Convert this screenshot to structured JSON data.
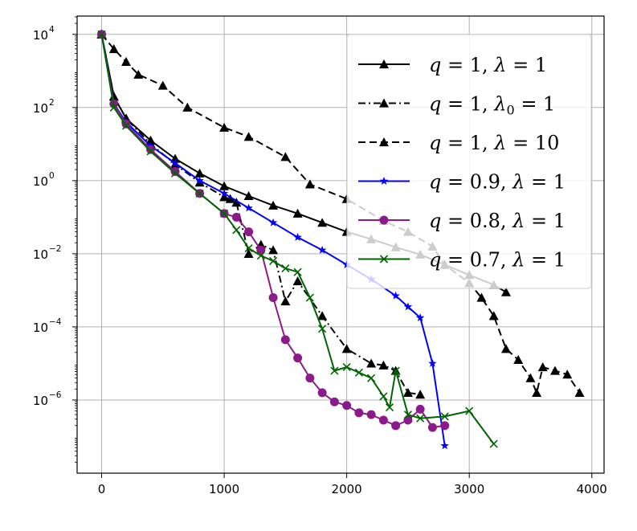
{
  "chart_data": {
    "type": "line",
    "title": "",
    "xlabel": "",
    "ylabel": "",
    "yscale": "log",
    "xlim": [
      -200,
      4100
    ],
    "ylim_log10": [
      -8.0,
      4.5
    ],
    "xticks": [
      {
        "value": 0,
        "label": "0"
      },
      {
        "value": 1000,
        "label": "1000"
      },
      {
        "value": 2000,
        "label": "2000"
      },
      {
        "value": 3000,
        "label": "3000"
      },
      {
        "value": 4000,
        "label": "4000"
      }
    ],
    "yticks": [
      {
        "log10": 4,
        "base": "10",
        "exp": "4"
      },
      {
        "log10": 2,
        "base": "10",
        "exp": "2"
      },
      {
        "log10": 0,
        "base": "10",
        "exp": "0"
      },
      {
        "log10": -2,
        "base": "10",
        "exp": "−2"
      },
      {
        "log10": -4,
        "base": "10",
        "exp": "−4"
      },
      {
        "log10": -6,
        "base": "10",
        "exp": "−6"
      }
    ],
    "grid": true,
    "legend_position": "top-right",
    "series": [
      {
        "label_parts": [
          "q",
          " = 1, ",
          "λ",
          " = 1"
        ],
        "color": "#000000",
        "linestyle": "solid",
        "marker": "triangle",
        "x": [
          0,
          100,
          200,
          400,
          600,
          800,
          1000,
          1200,
          1400,
          1600,
          1800,
          2000,
          2200,
          2400,
          2600,
          2800,
          3000,
          3200,
          3300
        ],
        "log10_y": [
          4.0,
          2.3,
          1.7,
          1.1,
          0.6,
          0.2,
          -0.15,
          -0.42,
          -0.68,
          -0.9,
          -1.15,
          -1.4,
          -1.6,
          -1.82,
          -2.02,
          -2.3,
          -2.58,
          -2.85,
          -3.05
        ]
      },
      {
        "label_parts": [
          "q",
          " = 1, ",
          "λ",
          "0",
          " = 1"
        ],
        "color": "#000000",
        "linestyle": "dashdot",
        "marker": "triangle",
        "x": [
          0,
          100,
          200,
          400,
          600,
          800,
          1000,
          1050,
          1100,
          1200,
          1300,
          1400,
          1500,
          1600,
          1800,
          2000,
          2200,
          2300,
          2400,
          2500,
          2600
        ],
        "log10_y": [
          4.0,
          2.3,
          1.7,
          1.0,
          0.45,
          -0.05,
          -0.45,
          -0.5,
          -0.6,
          -2.0,
          -1.75,
          -1.9,
          -3.3,
          -2.75,
          -3.7,
          -4.6,
          -5.0,
          -5.05,
          -5.2,
          -5.8,
          -5.85
        ]
      },
      {
        "label_parts": [
          "q",
          " = 1, ",
          "λ",
          " = 10"
        ],
        "color": "#000000",
        "linestyle": "dashed",
        "marker": "triangle",
        "x": [
          0,
          100,
          200,
          300,
          500,
          700,
          1000,
          1200,
          1500,
          1700,
          2000,
          2300,
          2500,
          2700,
          2800,
          3000,
          3100,
          3200,
          3300,
          3400,
          3500,
          3550,
          3600,
          3700,
          3800,
          3900
        ],
        "log10_y": [
          4.0,
          3.6,
          3.25,
          2.9,
          2.6,
          2.0,
          1.45,
          1.2,
          0.65,
          -0.1,
          -0.5,
          -1.1,
          -1.4,
          -1.8,
          -2.3,
          -2.8,
          -3.2,
          -3.7,
          -4.6,
          -4.9,
          -5.4,
          -5.8,
          -5.1,
          -5.2,
          -5.3,
          -5.8
        ]
      },
      {
        "label_parts": [
          "q",
          " = 0.9, ",
          "λ",
          " = 1"
        ],
        "color": "#0000ff",
        "linestyle": "solid",
        "marker": "star",
        "x": [
          0,
          100,
          200,
          400,
          600,
          800,
          1000,
          1200,
          1400,
          1600,
          1800,
          2000,
          2200,
          2400,
          2500,
          2600,
          2700,
          2800
        ],
        "log10_y": [
          4.0,
          2.1,
          1.6,
          0.95,
          0.48,
          0.0,
          -0.35,
          -0.75,
          -1.15,
          -1.55,
          -1.9,
          -2.3,
          -2.7,
          -3.15,
          -3.45,
          -3.75,
          -5.0,
          -7.25
        ]
      },
      {
        "label_parts": [
          "q",
          " = 0.8, ",
          "λ",
          " = 1"
        ],
        "color": "#8b1a8b",
        "linestyle": "solid",
        "marker": "circle",
        "x": [
          0,
          100,
          200,
          400,
          600,
          800,
          1000,
          1100,
          1200,
          1300,
          1400,
          1500,
          1600,
          1700,
          1800,
          1900,
          2000,
          2100,
          2200,
          2300,
          2400,
          2500,
          2600,
          2700,
          2800
        ],
        "log10_y": [
          4.0,
          2.1,
          1.55,
          0.85,
          0.25,
          -0.35,
          -0.9,
          -1.0,
          -1.4,
          -1.9,
          -3.2,
          -4.35,
          -4.85,
          -5.4,
          -5.8,
          -6.05,
          -6.15,
          -6.35,
          -6.4,
          -6.55,
          -6.7,
          -6.55,
          -6.25,
          -6.75,
          -6.7
        ]
      },
      {
        "label_parts": [
          "q",
          " = 0.7, ",
          "λ",
          " = 1"
        ],
        "color": "#006400",
        "linestyle": "solid",
        "marker": "x",
        "x": [
          0,
          100,
          200,
          400,
          600,
          800,
          1000,
          1100,
          1200,
          1300,
          1400,
          1500,
          1600,
          1700,
          1800,
          1900,
          2000,
          2100,
          2200,
          2300,
          2350,
          2400,
          2500,
          2600,
          2800,
          3000,
          3200
        ],
        "log10_y": [
          4.0,
          2.0,
          1.5,
          0.8,
          0.2,
          -0.35,
          -0.9,
          -1.35,
          -1.85,
          -2.05,
          -2.2,
          -2.4,
          -2.5,
          -3.2,
          -4.05,
          -5.2,
          -5.1,
          -5.25,
          -5.4,
          -5.9,
          -6.2,
          -5.2,
          -6.4,
          -6.5,
          -6.45,
          -6.3,
          -7.2
        ]
      }
    ]
  }
}
